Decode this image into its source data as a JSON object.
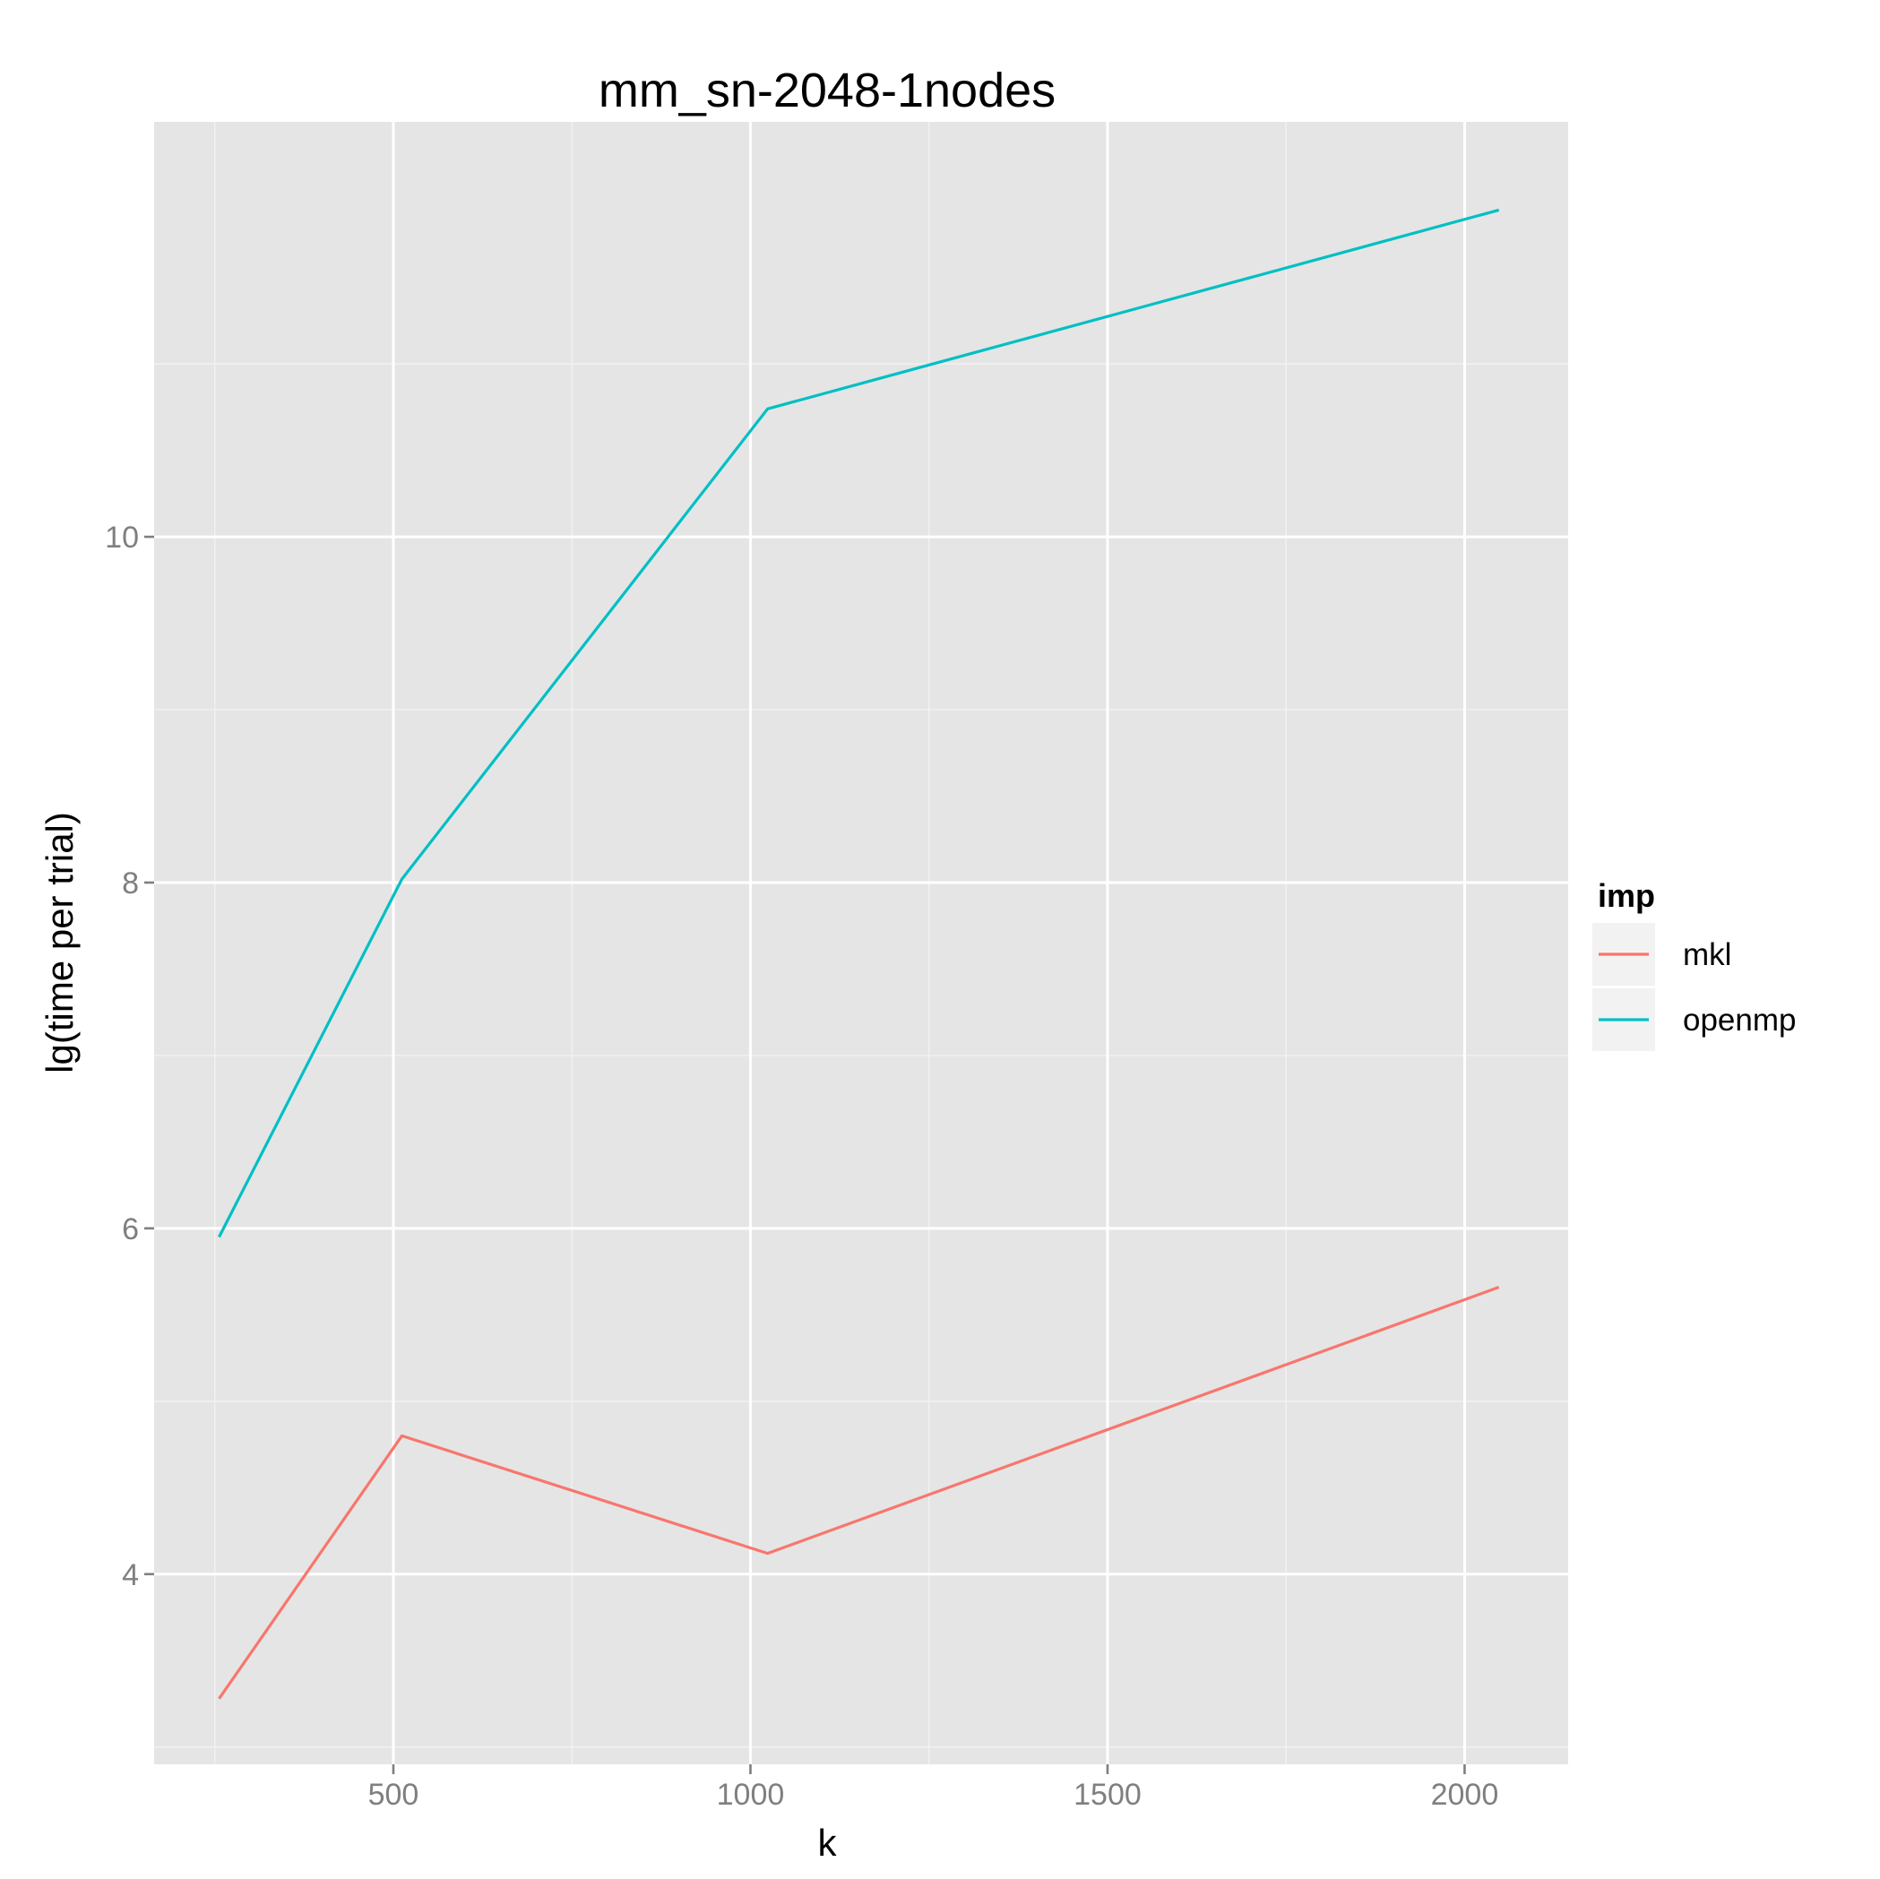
{
  "chart_data": {
    "type": "line",
    "title": "mm_sn-2048-1nodes",
    "xlabel": "k",
    "ylabel": "lg(time per trial)",
    "xlim": [
      165,
      2145
    ],
    "ylim": [
      2.9,
      12.4
    ],
    "x_ticks": [
      500,
      1000,
      1500,
      2000
    ],
    "y_ticks": [
      4,
      6,
      8,
      10
    ],
    "x_tick_labels": [
      "500",
      "1000",
      "1500",
      "2000"
    ],
    "y_tick_labels": [
      "4",
      "6",
      "8",
      "10"
    ],
    "grid": true,
    "legend": {
      "title": "imp",
      "position": "right"
    },
    "series": [
      {
        "name": "mkl",
        "color": "#F8766D",
        "x": [
          256,
          512,
          1024,
          2048
        ],
        "y": [
          3.28,
          4.8,
          4.12,
          5.66
        ]
      },
      {
        "name": "openmp",
        "color": "#00BFC4",
        "x": [
          256,
          512,
          1024,
          2048
        ],
        "y": [
          5.95,
          8.02,
          10.74,
          11.89
        ]
      }
    ],
    "panel_background": "#E5E5E5",
    "grid_major_color": "#FFFFFF",
    "grid_minor_color": "#F2F2F2",
    "legend_key_background": "#F2F2F2",
    "tick_color": "#7f7f7f"
  }
}
